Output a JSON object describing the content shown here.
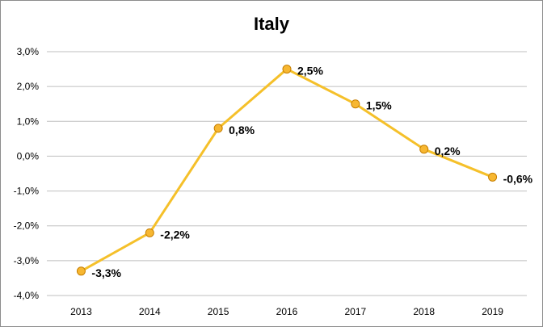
{
  "chart_data": {
    "type": "line",
    "title": "Italy",
    "xlabel": "",
    "ylabel": "",
    "categories": [
      "2013",
      "2014",
      "2015",
      "2016",
      "2017",
      "2018",
      "2019"
    ],
    "series": [
      {
        "values": [
          -3.3,
          -2.2,
          0.8,
          2.5,
          1.5,
          0.2,
          -0.6
        ],
        "labels": [
          "-3,3%",
          "-2,2%",
          "0,8%",
          "2,5%",
          "1,5%",
          "0,2%",
          "-0,6%"
        ],
        "color": "#f5c02a",
        "marker_color": "#f7b731"
      }
    ],
    "ylim": [
      -4.0,
      3.0
    ],
    "yticks": [
      3.0,
      2.0,
      1.0,
      0.0,
      -1.0,
      -2.0,
      -3.0,
      -4.0
    ],
    "ytick_labels": [
      "3,0%",
      "2,0%",
      "1,0%",
      "0,0%",
      "-1,0%",
      "-2,0%",
      "-3,0%",
      "-4,0%"
    ],
    "grid": true,
    "legend": "none"
  }
}
